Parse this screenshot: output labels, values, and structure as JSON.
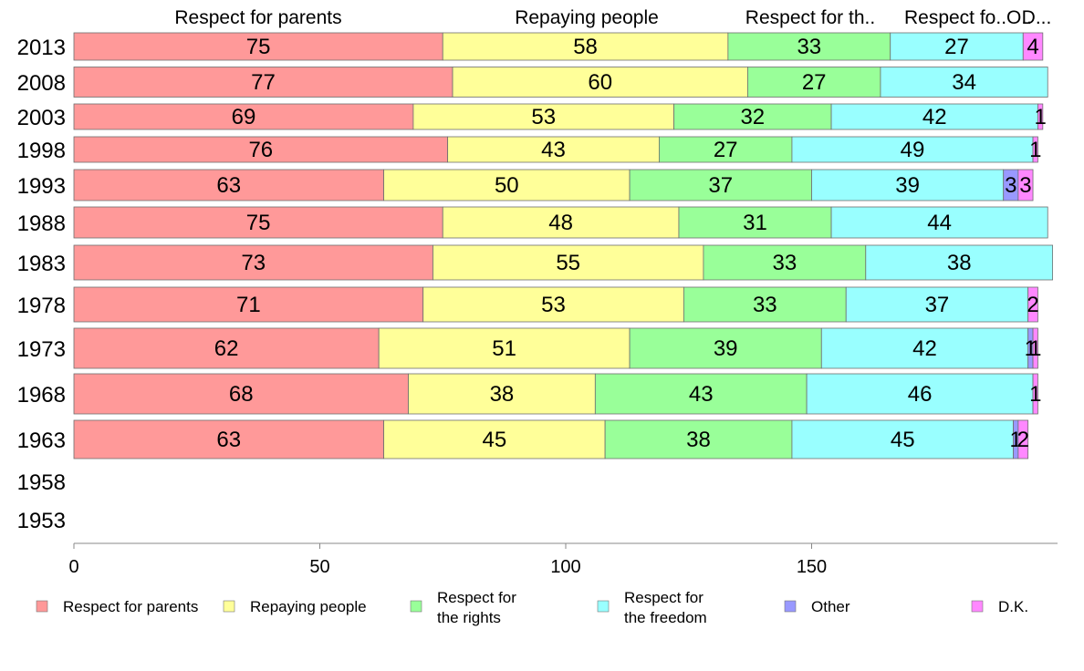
{
  "chart_data": {
    "type": "bar",
    "orientation": "horizontal",
    "stacked": true,
    "title": "",
    "xlabel": "",
    "ylabel": "",
    "xlim": [
      0,
      200
    ],
    "x_ticks": [
      0,
      50,
      100,
      150
    ],
    "legend_position": "bottom",
    "column_headers": [
      "Respect for parents",
      "Repaying people",
      "Respect for th..",
      "Respect fo..",
      "O..",
      "D..."
    ],
    "categories": [
      "2013",
      "2008",
      "2003",
      "1998",
      "1993",
      "1988",
      "1983",
      "1978",
      "1973",
      "1968",
      "1963",
      "1958",
      "1953"
    ],
    "series": [
      {
        "name": "Respect for parents",
        "legend_lines": [
          "Respect for parents"
        ],
        "color": "#ff9999",
        "values": [
          75,
          77,
          69,
          76,
          63,
          75,
          73,
          71,
          62,
          68,
          63,
          null,
          null
        ]
      },
      {
        "name": "Repaying people",
        "legend_lines": [
          "Repaying people"
        ],
        "color": "#ffff99",
        "values": [
          58,
          60,
          53,
          43,
          50,
          48,
          55,
          53,
          51,
          38,
          45,
          null,
          null
        ]
      },
      {
        "name": "Respect for the rights",
        "legend_lines": [
          "Respect for",
          "the rights"
        ],
        "color": "#99ff99",
        "values": [
          33,
          27,
          32,
          27,
          37,
          31,
          33,
          33,
          39,
          43,
          38,
          null,
          null
        ]
      },
      {
        "name": "Respect for the freedom",
        "legend_lines": [
          "Respect for",
          "the freedom"
        ],
        "color": "#99ffff",
        "values": [
          27,
          34,
          42,
          49,
          39,
          44,
          38,
          37,
          42,
          46,
          45,
          null,
          null
        ]
      },
      {
        "name": "Other",
        "legend_lines": [
          "Other"
        ],
        "color": "#9999ff",
        "values": [
          0,
          0,
          0,
          0,
          3,
          0,
          0,
          0,
          1,
          0,
          1,
          null,
          null
        ]
      },
      {
        "name": "D.K.",
        "legend_lines": [
          "D.K."
        ],
        "color": "#ff88ff",
        "values": [
          4,
          0,
          1,
          1,
          3,
          0,
          0,
          2,
          1,
          1,
          2,
          null,
          null
        ]
      }
    ]
  }
}
